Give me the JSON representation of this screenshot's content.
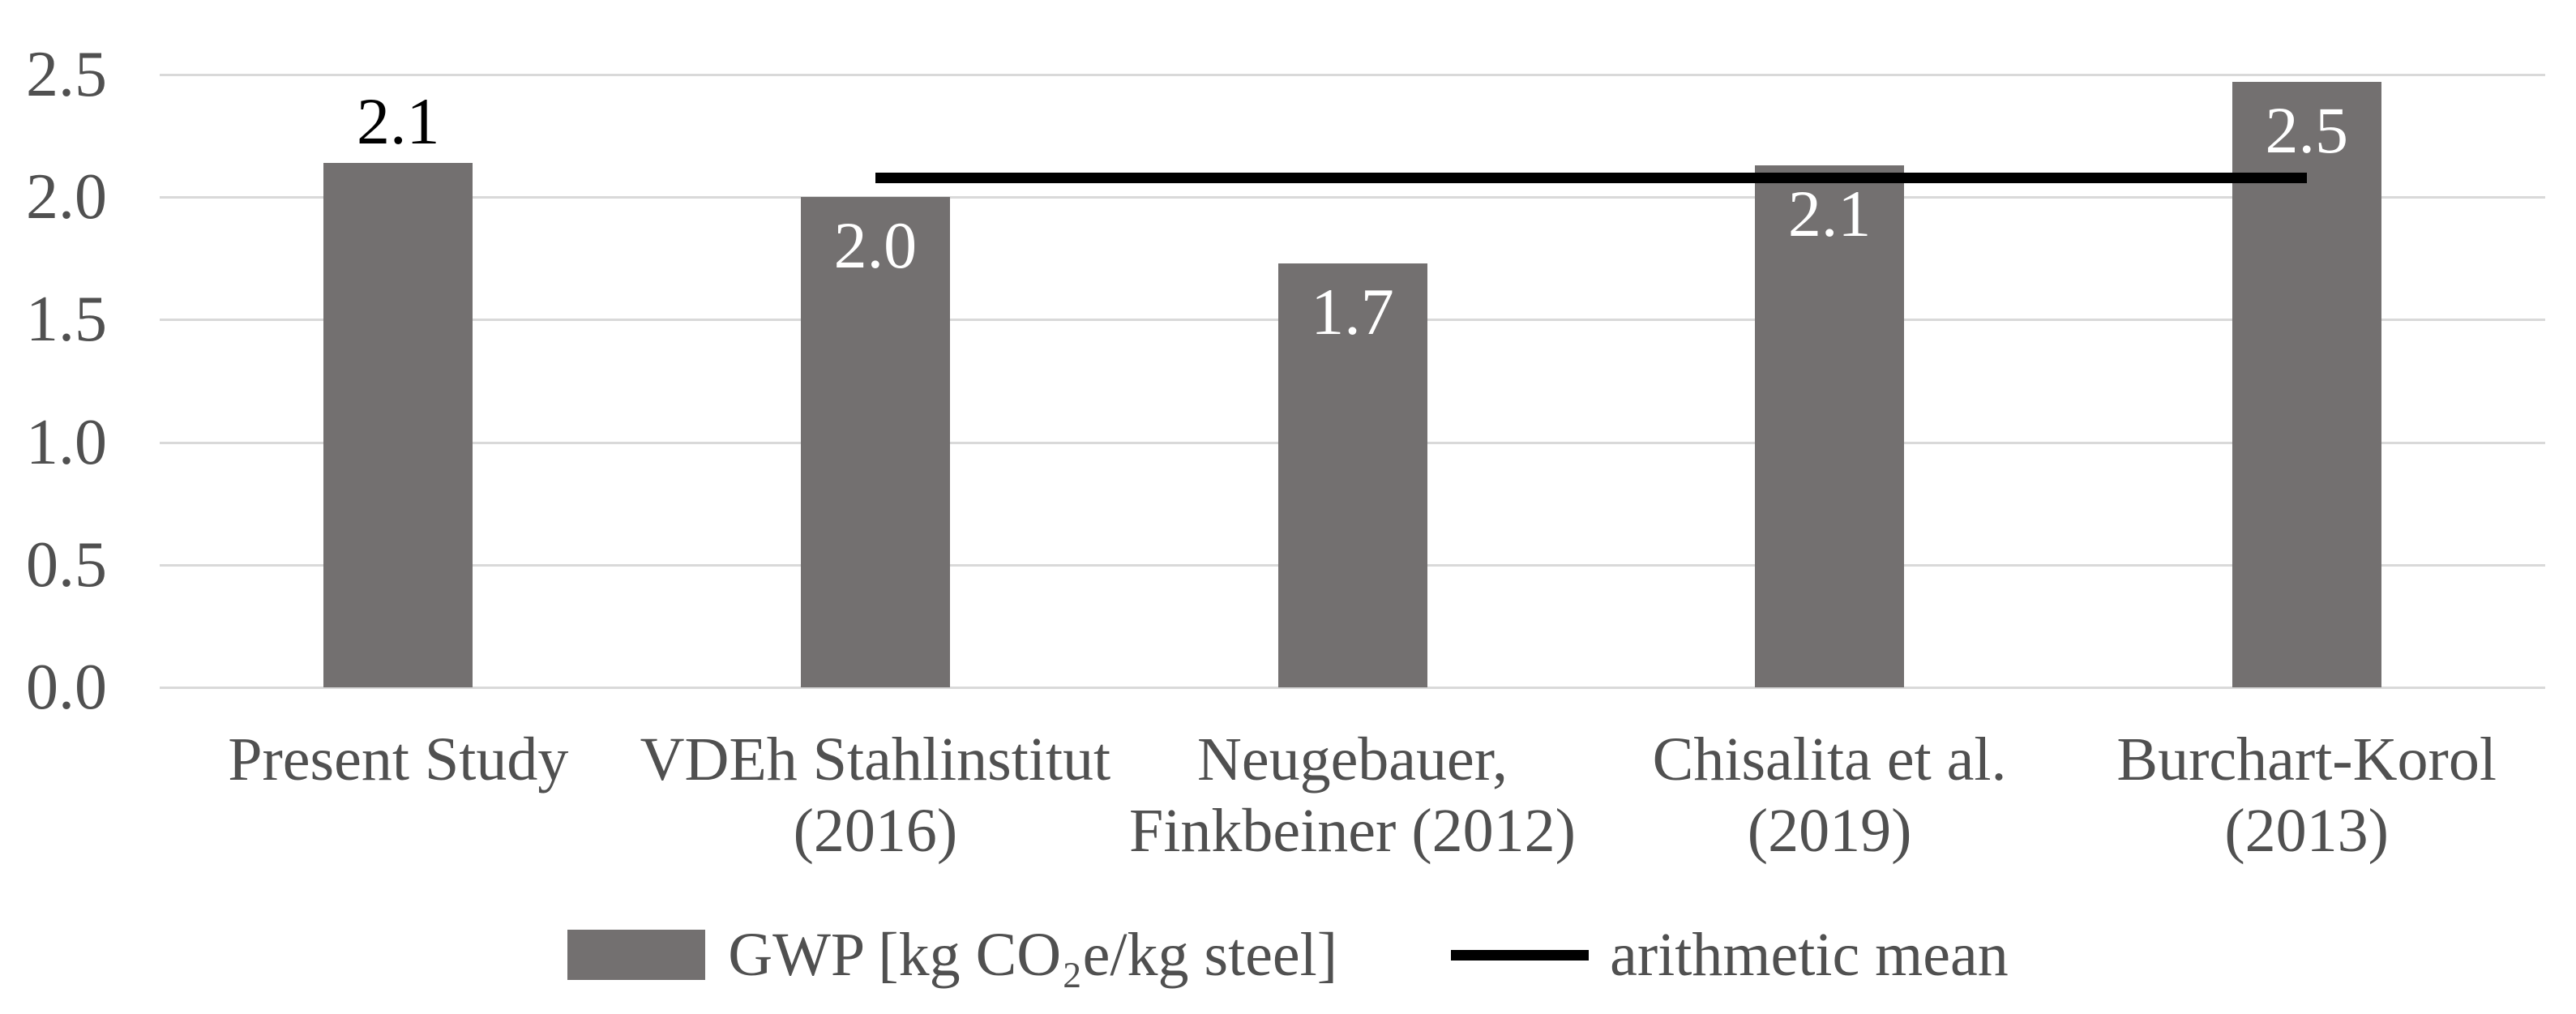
{
  "chart_data": {
    "type": "bar",
    "title": "",
    "categories": [
      "Present Study",
      "VDEh Stahlinstitut (2016)",
      "Neugebauer, Finkbeiner (2012)",
      "Chisalita et al. (2019)",
      "Burchart-Korol (2013)"
    ],
    "category_label_lines": [
      [
        "Present Study"
      ],
      [
        "VDEh Stahlinstitut",
        "(2016)"
      ],
      [
        "Neugebauer,",
        "Finkbeiner (2012)"
      ],
      [
        "Chisalita et al.",
        "(2019)"
      ],
      [
        "Burchart-Korol",
        "(2013)"
      ]
    ],
    "series": [
      {
        "name": "GWP [kg CO₂e/kg steel]",
        "values": [
          2.14,
          2.0,
          1.73,
          2.13,
          2.47
        ],
        "data_labels": [
          "2.1",
          "2.0",
          "1.7",
          "2.1",
          "2.5"
        ],
        "data_label_positions": [
          "above",
          "inside",
          "inside",
          "inside",
          "inside"
        ]
      }
    ],
    "mean_line": {
      "name": "arithmetic mean",
      "value": 2.08,
      "spans_category_centers": [
        1,
        4
      ]
    },
    "y_axis": {
      "min": 0.0,
      "max": 2.5,
      "step": 0.5,
      "tick_labels": [
        "0.0",
        "0.5",
        "1.0",
        "1.5",
        "2.0",
        "2.5"
      ],
      "gridlines": true
    },
    "legend": {
      "position": "bottom",
      "items": [
        {
          "marker": "square",
          "label": "GWP [kg CO₂e/kg steel]"
        },
        {
          "marker": "line",
          "label": "arithmetic mean"
        }
      ]
    },
    "colors": {
      "bar": "#737070",
      "mean_line": "#000000",
      "gridline": "#d9d9d9",
      "axis_text": "#505050",
      "data_label_above": "#000000",
      "data_label_inside": "#ffffff",
      "background": "#ffffff"
    }
  }
}
